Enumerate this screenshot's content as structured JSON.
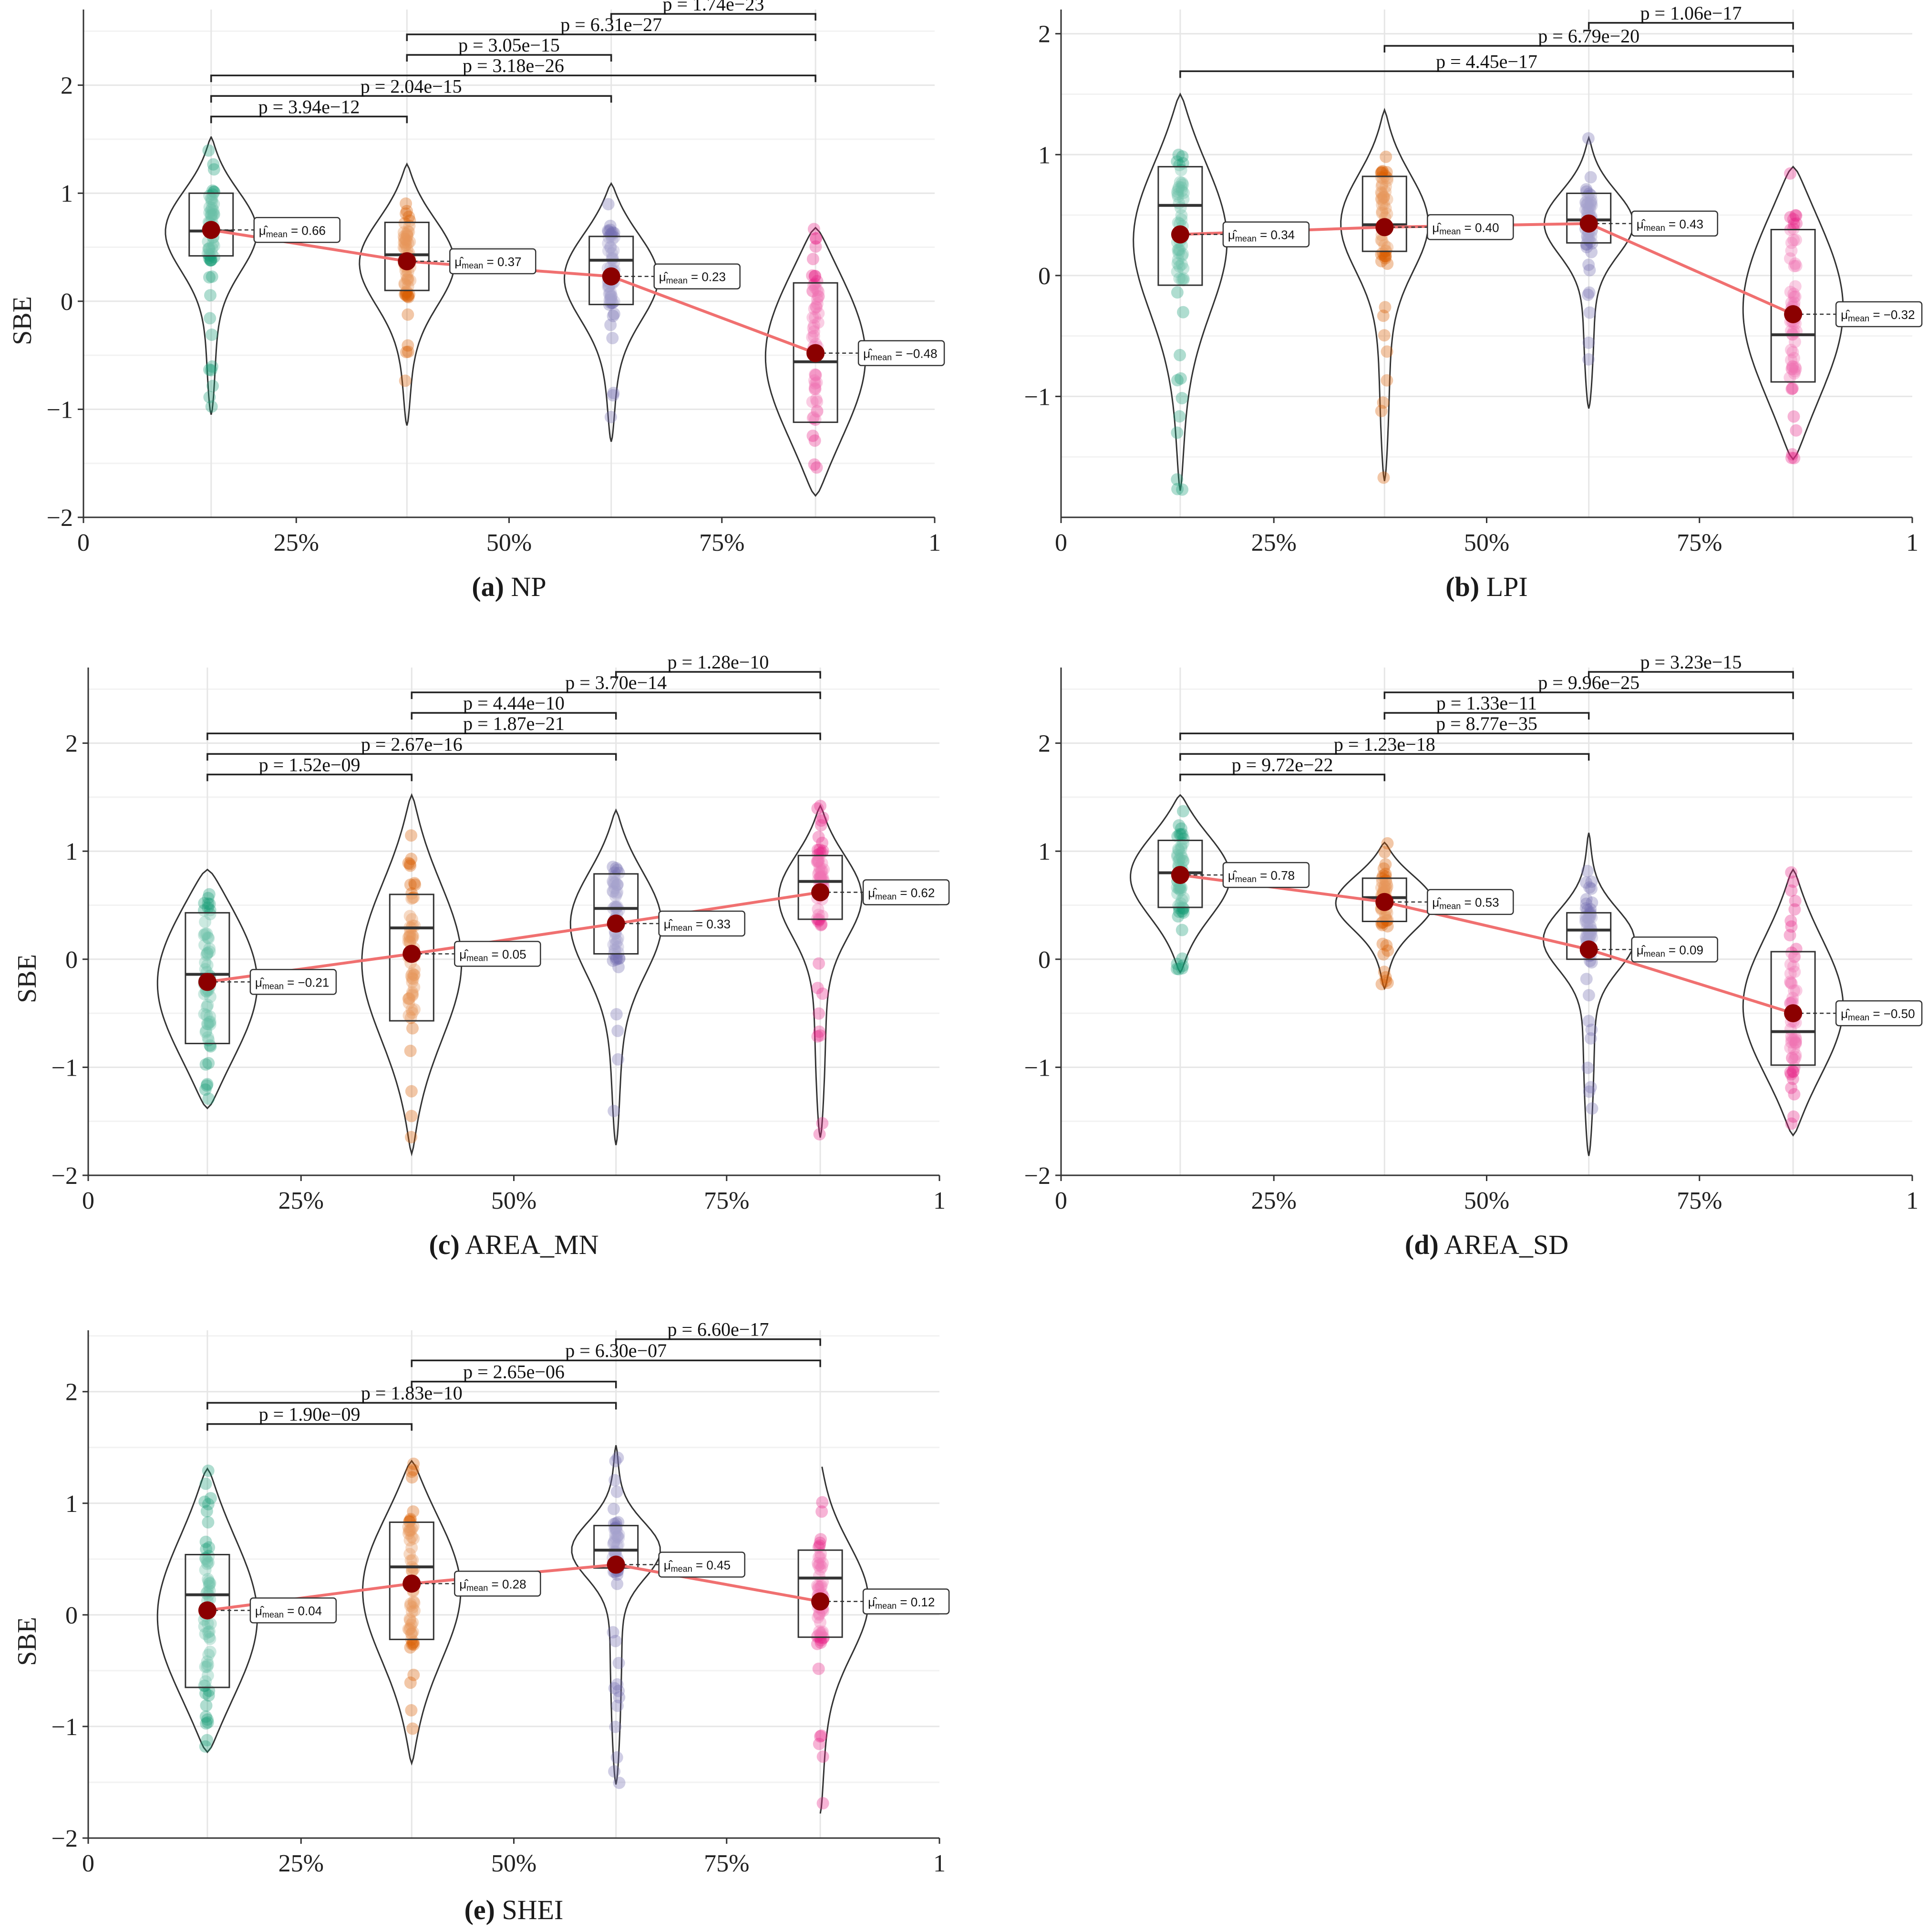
{
  "chart_data": [
    {
      "type": "violin",
      "caption_letter": "(a)",
      "caption": "NP",
      "ylabel": "SBE",
      "ylim": [
        -2,
        2.7
      ],
      "yticks": [
        "2",
        "1",
        "0",
        "−1",
        "−2"
      ],
      "xticks": [
        "0",
        "25%",
        "50%",
        "75%",
        "1"
      ],
      "groups": [
        {
          "pos": 0.15,
          "color": "#1b9e77",
          "min": -1.05,
          "max": 1.52,
          "q1": 0.42,
          "median": 0.65,
          "q3": 1.0,
          "mean": 0.66,
          "mean_label": "= 0.66"
        },
        {
          "pos": 0.38,
          "color": "#d95f02",
          "min": -1.15,
          "max": 1.27,
          "q1": 0.1,
          "median": 0.43,
          "q3": 0.73,
          "mean": 0.37,
          "mean_label": "= 0.37"
        },
        {
          "pos": 0.62,
          "color": "#7570b3",
          "min": -1.3,
          "max": 1.09,
          "q1": -0.03,
          "median": 0.38,
          "q3": 0.6,
          "mean": 0.23,
          "mean_label": "= 0.23"
        },
        {
          "pos": 0.86,
          "color": "#e7298a",
          "min": -1.8,
          "max": 0.68,
          "q1": -1.12,
          "median": -0.56,
          "q3": 0.17,
          "mean": -0.48,
          "mean_label": "= −0.48"
        }
      ],
      "comparisons": [
        {
          "g1": 0,
          "g2": 1,
          "y": 1.71,
          "label": "p = 3.94e−12"
        },
        {
          "g1": 0,
          "g2": 2,
          "y": 1.9,
          "label": "p = 2.04e−15"
        },
        {
          "g1": 0,
          "g2": 3,
          "y": 2.09,
          "label": "p = 3.18e−26"
        },
        {
          "g1": 1,
          "g2": 2,
          "y": 2.28,
          "label": "p = 3.05e−15"
        },
        {
          "g1": 1,
          "g2": 3,
          "y": 2.47,
          "label": "p = 6.31e−27"
        },
        {
          "g1": 2,
          "g2": 3,
          "y": 2.66,
          "label": "p = 1.74e−23"
        }
      ]
    },
    {
      "type": "violin",
      "caption_letter": "(b)",
      "caption": "LPI",
      "ylabel": "",
      "ylim": [
        -2,
        2.2
      ],
      "yticks": [
        "2",
        "1",
        "0",
        "−1"
      ],
      "xticks": [
        "0",
        "25%",
        "50%",
        "75%",
        "1"
      ],
      "groups": [
        {
          "pos": 0.14,
          "color": "#1b9e77",
          "min": -1.78,
          "max": 1.5,
          "q1": -0.08,
          "median": 0.58,
          "q3": 0.9,
          "mean": 0.34,
          "mean_label": "= 0.34"
        },
        {
          "pos": 0.38,
          "color": "#d95f02",
          "min": -1.7,
          "max": 1.37,
          "q1": 0.2,
          "median": 0.42,
          "q3": 0.82,
          "mean": 0.4,
          "mean_label": "= 0.40"
        },
        {
          "pos": 0.62,
          "color": "#7570b3",
          "min": -1.1,
          "max": 1.14,
          "q1": 0.27,
          "median": 0.46,
          "q3": 0.68,
          "mean": 0.43,
          "mean_label": "= 0.43"
        },
        {
          "pos": 0.86,
          "color": "#e7298a",
          "min": -1.52,
          "max": 0.9,
          "q1": -0.88,
          "median": -0.49,
          "q3": 0.38,
          "mean": -0.32,
          "mean_label": "= −0.32"
        }
      ],
      "comparisons": [
        {
          "g1": 0,
          "g2": 3,
          "y": 1.69,
          "label": "p = 4.45e−17"
        },
        {
          "g1": 1,
          "g2": 3,
          "y": 1.9,
          "label": "p = 6.79e−20"
        },
        {
          "g1": 2,
          "g2": 3,
          "y": 2.09,
          "label": "p = 1.06e−17"
        }
      ]
    },
    {
      "type": "violin",
      "caption_letter": "(c)",
      "caption": "AREA_MN",
      "ylabel": "SBE",
      "ylim": [
        -2,
        2.7
      ],
      "yticks": [
        "2",
        "1",
        "0",
        "−1",
        "−2"
      ],
      "xticks": [
        "0",
        "25%",
        "50%",
        "75%",
        "1"
      ],
      "groups": [
        {
          "pos": 0.14,
          "color": "#1b9e77",
          "min": -1.38,
          "max": 0.83,
          "q1": -0.78,
          "median": -0.14,
          "q3": 0.43,
          "mean": -0.21,
          "mean_label": "= −0.21"
        },
        {
          "pos": 0.38,
          "color": "#d95f02",
          "min": -1.8,
          "max": 1.52,
          "q1": -0.57,
          "median": 0.29,
          "q3": 0.6,
          "mean": 0.05,
          "mean_label": "= 0.05"
        },
        {
          "pos": 0.62,
          "color": "#7570b3",
          "min": -1.72,
          "max": 1.38,
          "q1": 0.05,
          "median": 0.47,
          "q3": 0.79,
          "mean": 0.33,
          "mean_label": "= 0.33"
        },
        {
          "pos": 0.86,
          "color": "#e7298a",
          "min": -1.65,
          "max": 1.42,
          "q1": 0.37,
          "median": 0.72,
          "q3": 0.96,
          "mean": 0.62,
          "mean_label": "= 0.62"
        }
      ],
      "comparisons": [
        {
          "g1": 0,
          "g2": 1,
          "y": 1.71,
          "label": "p = 1.52e−09"
        },
        {
          "g1": 0,
          "g2": 2,
          "y": 1.9,
          "label": "p = 2.67e−16"
        },
        {
          "g1": 0,
          "g2": 3,
          "y": 2.09,
          "label": "p = 1.87e−21"
        },
        {
          "g1": 1,
          "g2": 2,
          "y": 2.28,
          "label": "p = 4.44e−10"
        },
        {
          "g1": 1,
          "g2": 3,
          "y": 2.47,
          "label": "p = 3.70e−14"
        },
        {
          "g1": 2,
          "g2": 3,
          "y": 2.66,
          "label": "p = 1.28e−10"
        }
      ]
    },
    {
      "type": "violin",
      "caption_letter": "(d)",
      "caption": "AREA_SD",
      "ylabel": "",
      "ylim": [
        -2,
        2.7
      ],
      "yticks": [
        "2",
        "1",
        "0",
        "−1",
        "−2"
      ],
      "xticks": [
        "0",
        "25%",
        "50%",
        "75%",
        "1"
      ],
      "groups": [
        {
          "pos": 0.14,
          "color": "#1b9e77",
          "min": -0.12,
          "max": 1.52,
          "q1": 0.48,
          "median": 0.8,
          "q3": 1.1,
          "mean": 0.78,
          "mean_label": "= 0.78"
        },
        {
          "pos": 0.38,
          "color": "#d95f02",
          "min": -0.27,
          "max": 1.08,
          "q1": 0.35,
          "median": 0.57,
          "q3": 0.75,
          "mean": 0.53,
          "mean_label": "= 0.53"
        },
        {
          "pos": 0.62,
          "color": "#7570b3",
          "min": -1.82,
          "max": 1.17,
          "q1": 0.0,
          "median": 0.27,
          "q3": 0.43,
          "mean": 0.09,
          "mean_label": "= 0.09"
        },
        {
          "pos": 0.86,
          "color": "#e7298a",
          "min": -1.63,
          "max": 0.83,
          "q1": -0.98,
          "median": -0.67,
          "q3": 0.07,
          "mean": -0.5,
          "mean_label": "= −0.50"
        }
      ],
      "comparisons": [
        {
          "g1": 0,
          "g2": 1,
          "y": 1.71,
          "label": "p = 9.72e−22"
        },
        {
          "g1": 0,
          "g2": 2,
          "y": 1.9,
          "label": "p = 1.23e−18"
        },
        {
          "g1": 0,
          "g2": 3,
          "y": 2.09,
          "label": "p = 8.77e−35"
        },
        {
          "g1": 1,
          "g2": 2,
          "y": 2.28,
          "label": "p = 1.33e−11"
        },
        {
          "g1": 1,
          "g2": 3,
          "y": 2.47,
          "label": "p = 9.96e−25"
        },
        {
          "g1": 2,
          "g2": 3,
          "y": 2.66,
          "label": "p = 3.23e−15"
        }
      ]
    },
    {
      "type": "violin",
      "caption_letter": "(e)",
      "caption": "SHEI",
      "ylabel": "SBE",
      "ylim": [
        -2,
        2.55
      ],
      "yticks": [
        "2",
        "1",
        "0",
        "−1",
        "−2"
      ],
      "xticks": [
        "0",
        "25%",
        "50%",
        "75%",
        "1"
      ],
      "groups": [
        {
          "pos": 0.14,
          "color": "#1b9e77",
          "min": -1.23,
          "max": 1.31,
          "q1": -0.65,
          "median": 0.18,
          "q3": 0.54,
          "mean": 0.04,
          "mean_label": "= 0.04"
        },
        {
          "pos": 0.38,
          "color": "#d95f02",
          "min": -1.33,
          "max": 1.38,
          "q1": -0.22,
          "median": 0.43,
          "q3": 0.83,
          "mean": 0.28,
          "mean_label": "= 0.28"
        },
        {
          "pos": 0.62,
          "color": "#7570b3",
          "min": -1.52,
          "max": 1.52,
          "q1": 0.42,
          "median": 0.58,
          "q3": 0.8,
          "mean": 0.45,
          "mean_label": "= 0.45"
        },
        {
          "pos": 0.86,
          "color": "#e7298a",
          "min": -1.78,
          "max": 1.38,
          "q1": -0.2,
          "median": 0.33,
          "q3": 0.58,
          "mean": 0.12,
          "mean_label": "= 0.12"
        }
      ],
      "comparisons": [
        {
          "g1": 0,
          "g2": 1,
          "y": 1.71,
          "label": "p = 1.90e−09"
        },
        {
          "g1": 0,
          "g2": 2,
          "y": 1.9,
          "label": "p = 1.83e−10"
        },
        {
          "g1": 1,
          "g2": 2,
          "y": 2.09,
          "label": "p = 2.65e−06"
        },
        {
          "g1": 1,
          "g2": 3,
          "y": 2.28,
          "label": "p = 6.30e−07"
        },
        {
          "g1": 2,
          "g2": 3,
          "y": 2.47,
          "label": "p = 6.60e−17"
        }
      ]
    }
  ]
}
